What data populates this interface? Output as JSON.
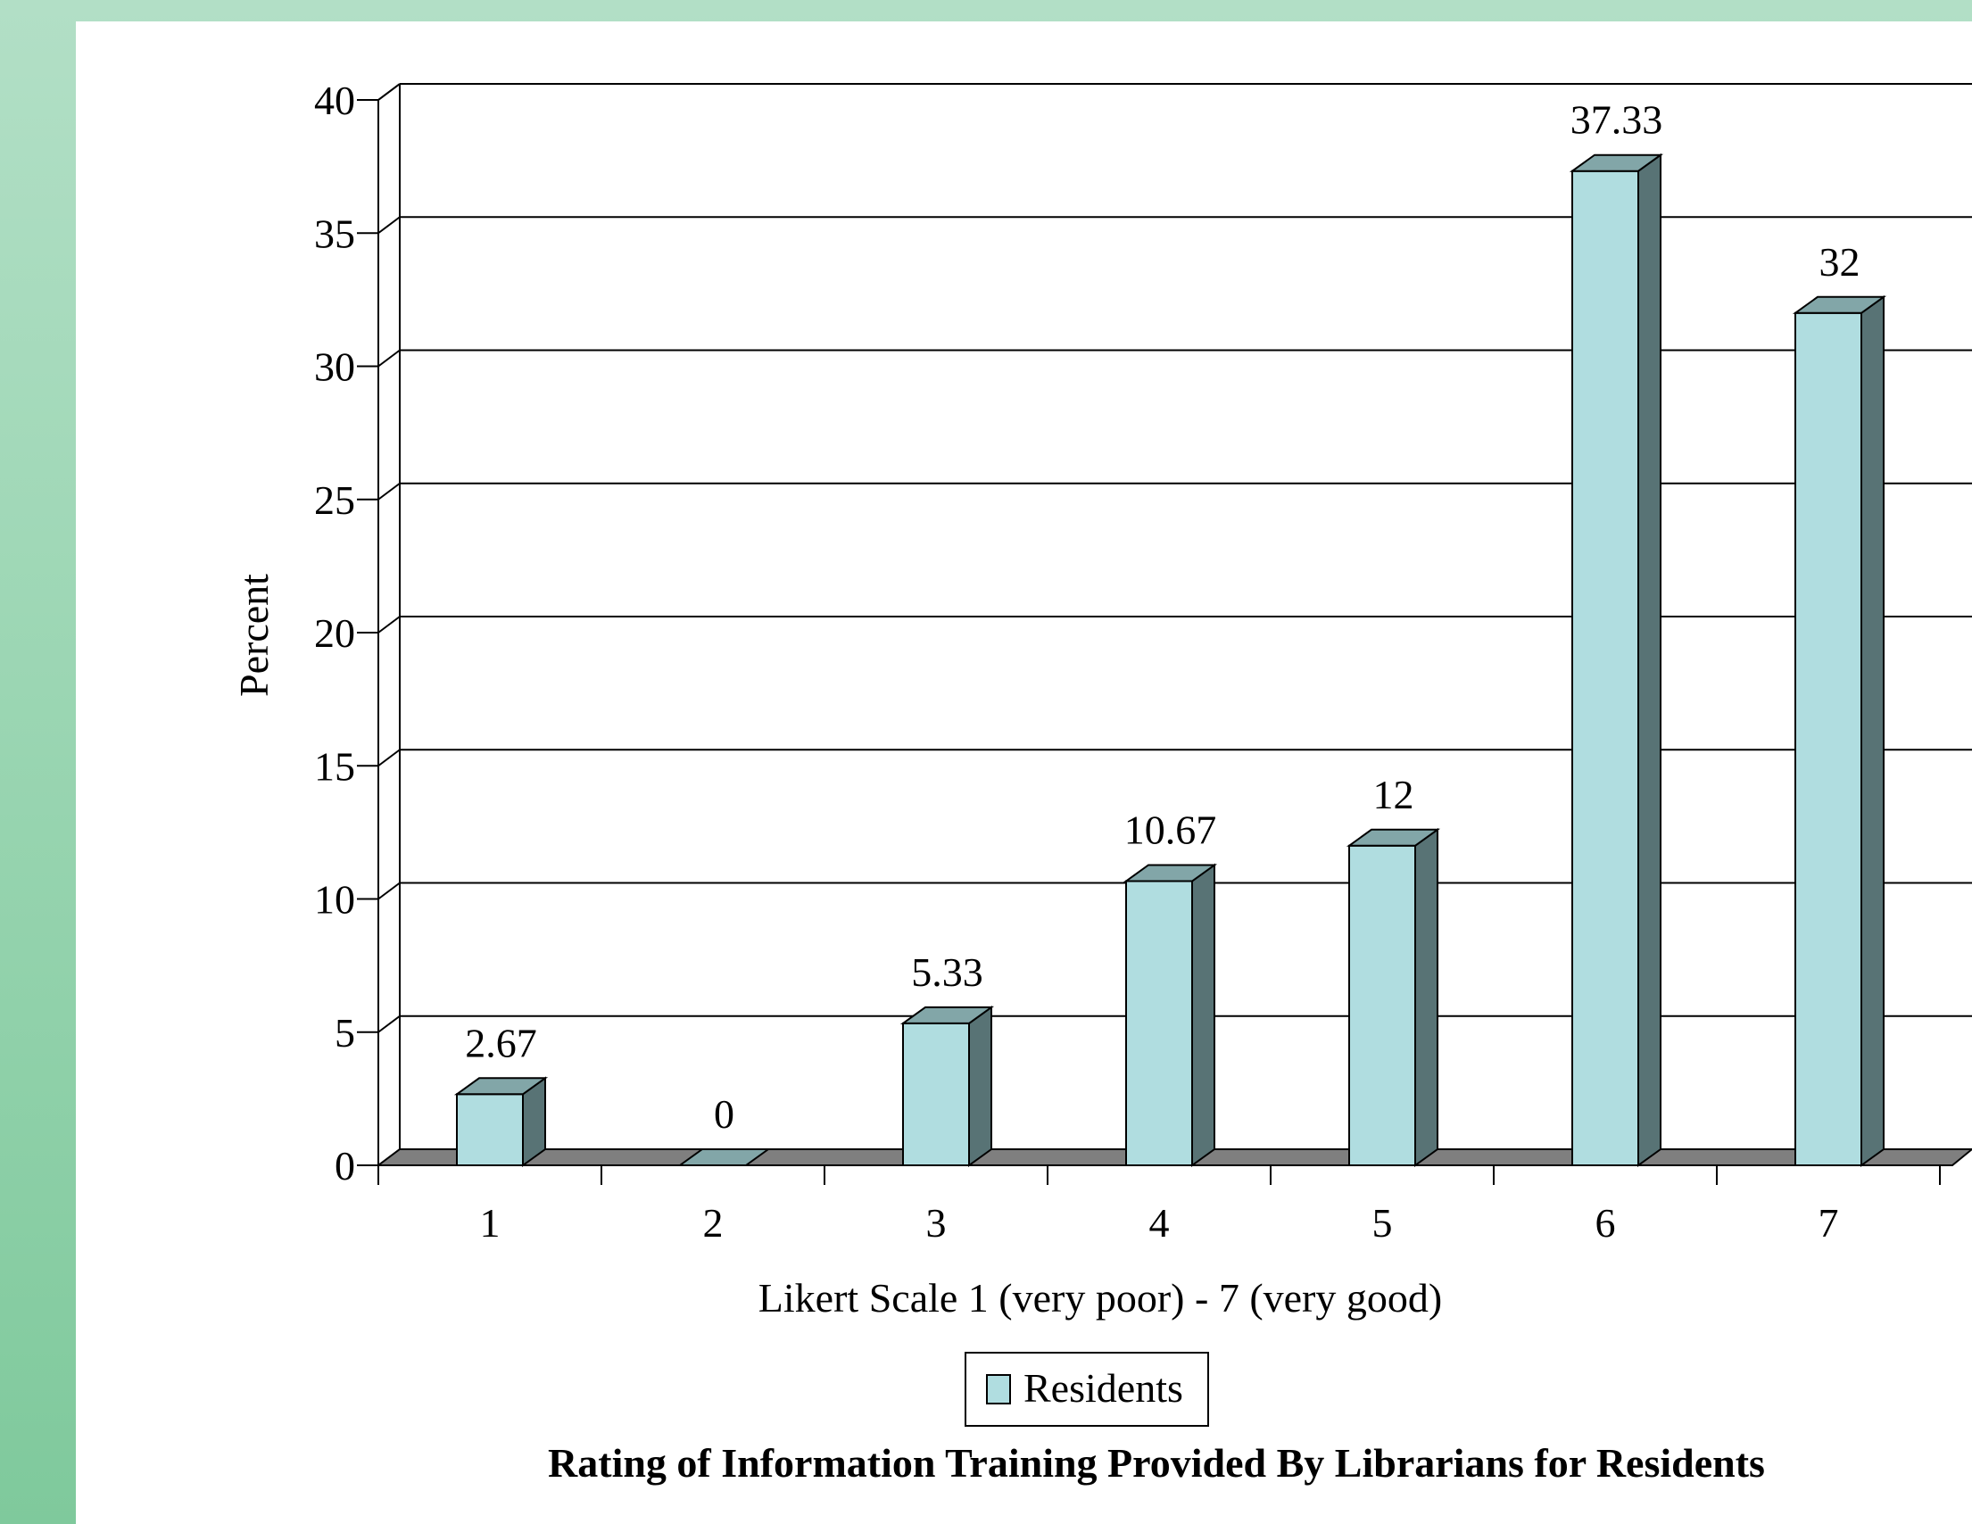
{
  "chart_data": {
    "type": "bar",
    "title": "Rating of Information Training Provided By Librarians for Residents",
    "xlabel": "Likert Scale 1 (very poor) - 7 (very good)",
    "ylabel": "Percent",
    "categories": [
      "1",
      "2",
      "3",
      "4",
      "5",
      "6",
      "7"
    ],
    "series": [
      {
        "name": "Residents",
        "values": [
          2.67,
          0,
          5.33,
          10.67,
          12,
          37.33,
          32
        ]
      }
    ],
    "data_labels": [
      "2.67",
      "0",
      "5.33",
      "10.67",
      "12",
      "37.33",
      "32"
    ],
    "ylim": [
      0,
      40
    ],
    "yticks": [
      0,
      5,
      10,
      15,
      20,
      25,
      30,
      35,
      40
    ],
    "grid": true,
    "legend_position": "bottom-center",
    "colors": {
      "bar_front": "#b0dde0",
      "bar_top": "#82a6a8",
      "bar_side": "#587375",
      "floor": "#7f7f7f",
      "background_green": "#9bd6b3"
    }
  }
}
